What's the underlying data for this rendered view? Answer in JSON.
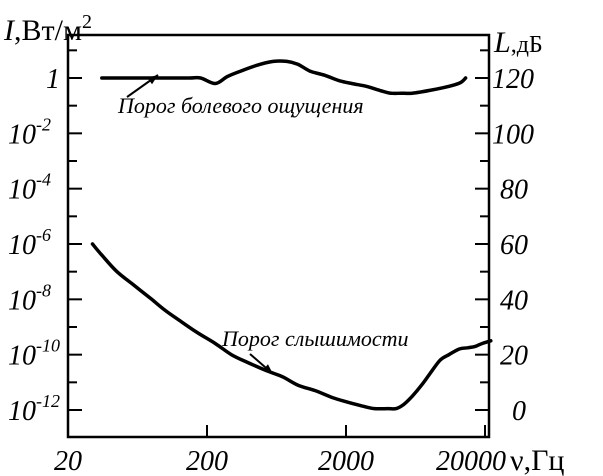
{
  "chart_data": {
    "type": "line",
    "x_scale": "log",
    "x_ticks": [
      "20",
      "200",
      "2000",
      "20000"
    ],
    "xlabel": {
      "symbol": "ν",
      "unit": ",Гц"
    },
    "ylabel_left": {
      "symbol": "I",
      "unit": ",Вт/м",
      "sup": "2"
    },
    "ylabel_right": {
      "symbol": "L",
      "unit": ",дБ"
    },
    "y_left_ticks": [
      {
        "base": "10",
        "exp": "-12",
        "db": 0
      },
      {
        "base": "10",
        "exp": "-10",
        "db": 20
      },
      {
        "base": "10",
        "exp": "-8",
        "db": 40
      },
      {
        "base": "10",
        "exp": "-6",
        "db": 60
      },
      {
        "base": "10",
        "exp": "-4",
        "db": 80
      },
      {
        "base": "10",
        "exp": "-2",
        "db": 100
      },
      {
        "base": "1",
        "exp": "",
        "db": 120
      }
    ],
    "y_right_ticks": [
      "0",
      "20",
      "40",
      "60",
      "80",
      "100",
      "120"
    ],
    "ylim_db": [
      -5,
      135
    ],
    "xlim": [
      20,
      25000
    ],
    "grid": false,
    "series": [
      {
        "name": "Порог болевого ощущения",
        "x": [
          35,
          60,
          100,
          150,
          180,
          230,
          280,
          350,
          450,
          600,
          750,
          900,
          1100,
          1400,
          1800,
          2200,
          2800,
          3500,
          4200,
          5000,
          6000,
          8000,
          10000,
          12000,
          13500,
          14500
        ],
        "y": [
          120,
          120,
          120,
          120,
          120,
          118,
          120.5,
          122.5,
          124.5,
          126,
          126,
          125,
          122.5,
          121,
          119,
          118,
          117,
          115.5,
          114.5,
          114.5,
          114.5,
          115.5,
          116.5,
          117.5,
          118.5,
          120
        ]
      },
      {
        "name": "Порог слышимости",
        "x": [
          30,
          35,
          45,
          60,
          80,
          100,
          130,
          170,
          230,
          300,
          400,
          550,
          700,
          900,
          1200,
          1600,
          2000,
          2600,
          3200,
          4000,
          4600,
          5200,
          6000,
          7000,
          8000,
          9500,
          11000,
          13000,
          15000,
          17000,
          19000,
          22000
        ],
        "y": [
          60,
          56,
          50,
          45,
          40,
          36,
          32,
          28,
          24,
          20,
          17,
          14,
          12,
          9,
          7,
          4.5,
          3,
          1.5,
          0.5,
          0.5,
          0.5,
          2,
          5,
          9,
          13,
          18,
          20,
          22,
          22.5,
          23,
          24,
          25
        ]
      }
    ],
    "annotations": [
      {
        "text": "Порог болевого ощущения",
        "series": 0
      },
      {
        "text": "Порог слышимости",
        "series": 1
      }
    ]
  }
}
